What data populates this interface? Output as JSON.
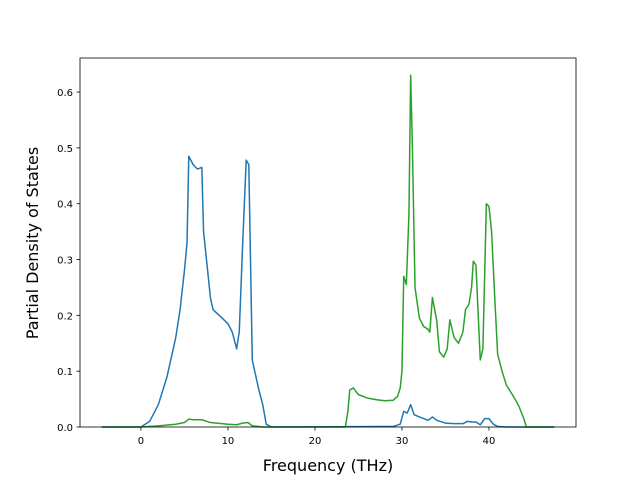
{
  "chart_data": {
    "type": "line",
    "xlabel": "Frequency (THz)",
    "ylabel": "Partial Density of States",
    "xlim": [
      -7.0,
      50.0
    ],
    "ylim": [
      0,
      0.661
    ],
    "xticks": [
      0,
      10,
      20,
      30,
      40
    ],
    "yticks": [
      {
        "value": 0,
        "label": "0.0"
      },
      0.1,
      0.2,
      0.3,
      0.4,
      0.5,
      0.6
    ],
    "series": [
      {
        "color": "#1f77b4",
        "x": [
          -4.5,
          0,
          1,
          2,
          3,
          4,
          4.5,
          5,
          5.3,
          5.5,
          6,
          6.5,
          7,
          7.2,
          7.6,
          8,
          8.3,
          9,
          10,
          10.5,
          11,
          11.3,
          11.7,
          12.1,
          12.4,
          12.8,
          13.5,
          14,
          14.4,
          15,
          29,
          29.8,
          30.2,
          30.6,
          31,
          31.4,
          32,
          33,
          33.5,
          34,
          35,
          36,
          37,
          37.5,
          38,
          38.5,
          39,
          39.5,
          40,
          40.5,
          41,
          42,
          47.5
        ],
        "values": [
          0,
          0,
          0.01,
          0.04,
          0.09,
          0.16,
          0.21,
          0.28,
          0.33,
          0.485,
          0.47,
          0.462,
          0.465,
          0.35,
          0.29,
          0.23,
          0.21,
          0.2,
          0.185,
          0.17,
          0.14,
          0.17,
          0.33,
          0.478,
          0.47,
          0.12,
          0.07,
          0.04,
          0.005,
          0,
          0.001,
          0.005,
          0.028,
          0.025,
          0.04,
          0.022,
          0.018,
          0.012,
          0.018,
          0.012,
          0.007,
          0.006,
          0.006,
          0.01,
          0.009,
          0.009,
          0.004,
          0.015,
          0.015,
          0.005,
          0.001,
          0,
          0
        ]
      },
      {
        "color": "#2ca02c",
        "x": [
          -4.5,
          0,
          2,
          4,
          5,
          5.5,
          6,
          7,
          8,
          10,
          11,
          11.7,
          12.3,
          12.8,
          14,
          23.5,
          23.8,
          24,
          24.4,
          25,
          26,
          27,
          28,
          29,
          29.5,
          29.8,
          30,
          30.2,
          30.5,
          30.8,
          31,
          31.2,
          31.5,
          32,
          32.5,
          33,
          33.2,
          33.5,
          34,
          34.3,
          34.8,
          35.2,
          35.5,
          36,
          36.5,
          37,
          37.3,
          37.7,
          38,
          38.2,
          38.5,
          39,
          39.3,
          39.7,
          40,
          40.3,
          40.7,
          41,
          41.5,
          42,
          43,
          43.5,
          44,
          44.3,
          47.5
        ],
        "values": [
          0,
          0,
          0.002,
          0.005,
          0.008,
          0.014,
          0.013,
          0.013,
          0.008,
          0.005,
          0.004,
          0.007,
          0.008,
          0.002,
          0,
          0,
          0.03,
          0.066,
          0.07,
          0.058,
          0.052,
          0.049,
          0.047,
          0.048,
          0.055,
          0.07,
          0.1,
          0.27,
          0.255,
          0.38,
          0.63,
          0.5,
          0.25,
          0.195,
          0.18,
          0.175,
          0.17,
          0.232,
          0.19,
          0.135,
          0.125,
          0.14,
          0.192,
          0.16,
          0.15,
          0.17,
          0.21,
          0.22,
          0.25,
          0.297,
          0.29,
          0.12,
          0.14,
          0.4,
          0.395,
          0.35,
          0.22,
          0.13,
          0.1,
          0.075,
          0.05,
          0.035,
          0.015,
          0,
          0
        ]
      }
    ]
  }
}
